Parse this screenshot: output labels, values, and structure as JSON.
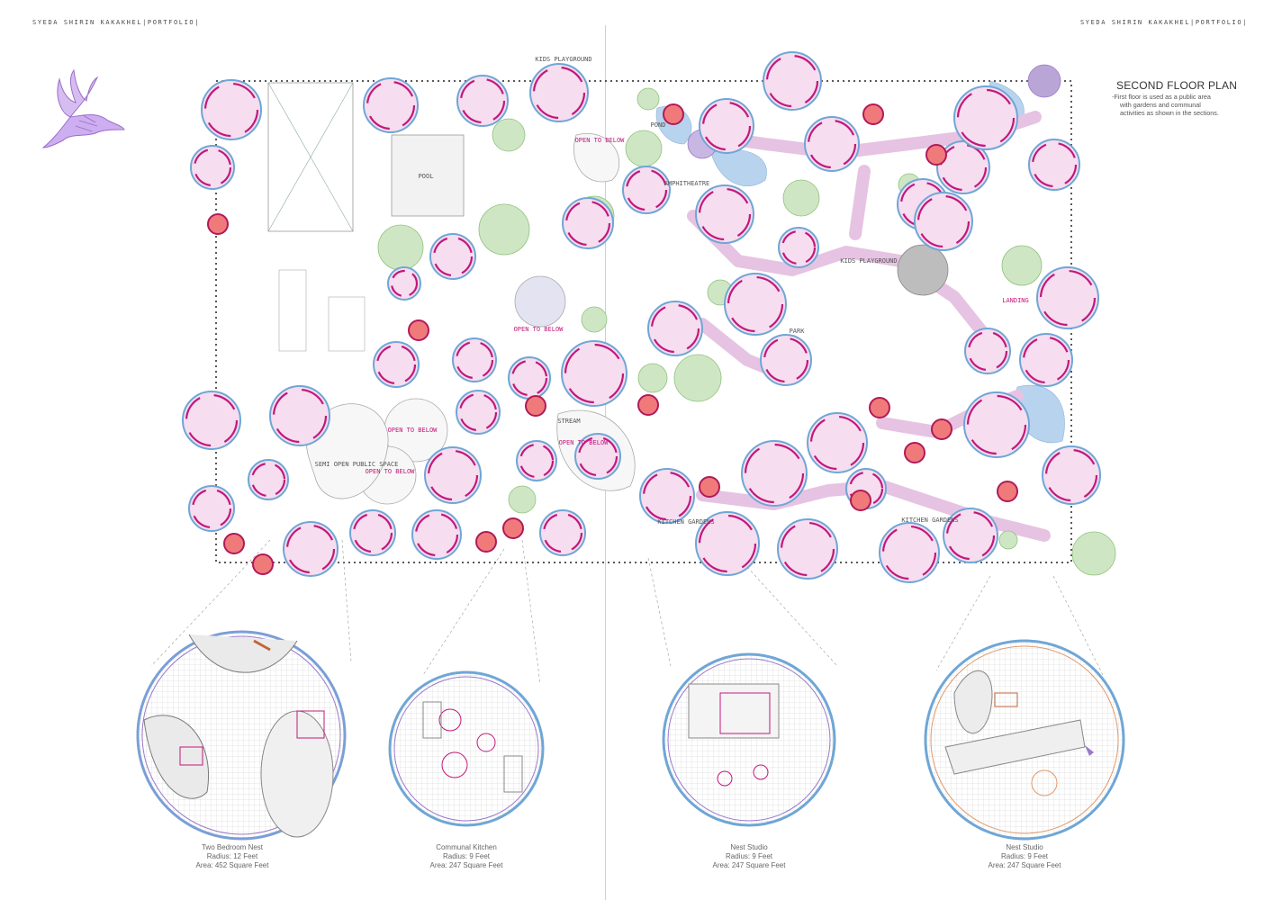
{
  "header": {
    "left": "SYEDA SHIRIN KAKAKHEL|PORTFOLIO|",
    "right": "SYEDA SHIRIN KAKAKHEL|PORTFOLIO|"
  },
  "title": "SECOND FLOOR PLAN",
  "subtitle": {
    "line1": "-First floor is used as a public  area",
    "line2": "with gardens and communal",
    "line3": "activities as shown in the sections."
  },
  "plan_labels": {
    "kids_playground_1": "KIDS PLAYGROUND",
    "open_to_below_1": "OPEN TO BELOW",
    "pond": "POND",
    "amphitheatre": "AMPHITHEATRE",
    "pool": "POOL",
    "kids_playground_2": "KIDS PLAYGROUND",
    "landing": "LANDING",
    "open_to_below_2": "OPEN TO BELOW",
    "park": "PARK",
    "stream": "STREAM",
    "open_to_below_3": "OPEN TO BELOW",
    "open_to_below_4": "OPEN TO BELOW",
    "open_to_below_5": "OPEN TO BELOW",
    "semi_open_public_space": "SEMI OPEN PUBLIC SPACE",
    "kitchen_gardens_1": "KITCHEN GARDENS",
    "kitchen_gardens_2": "KITCHEN GARDENS"
  },
  "units": [
    {
      "name": "Two Bedroom Nest",
      "radius": "Radius: 12 Feet",
      "area": "Area: 452 Square Feet"
    },
    {
      "name": "Communal Kitchen",
      "radius": "Radius: 9 Feet",
      "area": "Area: 247 Square Feet"
    },
    {
      "name": "Nest Studio",
      "radius": "Radius: 9 Feet",
      "area": "Area: 247 Square Feet"
    },
    {
      "name": "Nest Studio",
      "radius": "Radius: 9 Feet",
      "area": "Area: 247 Square Feet"
    }
  ],
  "colors": {
    "magenta": "#c2187a",
    "blue": "#6fa6d6",
    "pink_fill": "#f3d3ea",
    "lilac_path": "#e6c3e2",
    "tree_green": "#8fc27d",
    "water": "#b8d3ee",
    "bird": "#b58ad6",
    "orange": "#f08a5d"
  },
  "icons": {
    "logo": "bird-logo"
  }
}
